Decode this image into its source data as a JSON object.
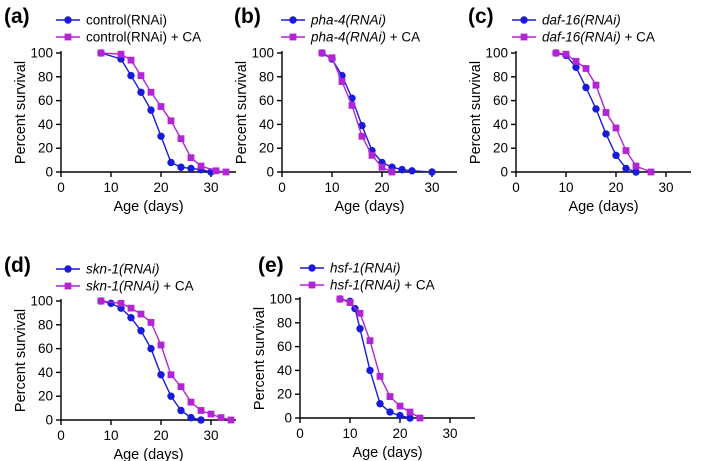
{
  "colors": {
    "control": "#1a1adb",
    "treated": "#b224d6"
  },
  "chart_data": [
    {
      "type": "line",
      "panel": "(a)",
      "xlabel": "Age (days)",
      "ylabel": "Percent survival",
      "xlim": [
        0,
        35
      ],
      "ylim": [
        0,
        100
      ],
      "xticks": [
        0,
        10,
        20,
        30
      ],
      "yticks": [
        0,
        20,
        40,
        60,
        80,
        100
      ],
      "series": [
        {
          "name": "control(RNAi)",
          "name_italic": "",
          "name_suffix": "",
          "marker": "circle",
          "x": [
            8,
            12,
            14,
            16,
            18,
            20,
            22,
            24,
            26,
            28,
            30
          ],
          "y": [
            100,
            95,
            81,
            67,
            52,
            30,
            8,
            4,
            3,
            2,
            0
          ]
        },
        {
          "name": "control(RNAi) + CA",
          "name_italic": "",
          "name_suffix": "",
          "marker": "square",
          "x": [
            8,
            12,
            14,
            16,
            18,
            20,
            22,
            24,
            26,
            28,
            31,
            33
          ],
          "y": [
            100,
            99,
            94,
            81,
            67,
            55,
            43,
            28,
            12,
            5,
            1,
            0
          ]
        }
      ]
    },
    {
      "type": "line",
      "panel": "(b)",
      "xlabel": "Age (days)",
      "ylabel": "Percent survival",
      "xlim": [
        0,
        35
      ],
      "ylim": [
        0,
        100
      ],
      "xticks": [
        0,
        10,
        20,
        30
      ],
      "yticks": [
        0,
        20,
        40,
        60,
        80,
        100
      ],
      "series": [
        {
          "name": "pha-4(RNAi)",
          "name_italic": "pha-4(RNAi)",
          "name_suffix": "",
          "marker": "circle",
          "x": [
            8,
            10,
            12,
            14,
            16,
            18,
            20,
            22,
            24,
            26,
            30
          ],
          "y": [
            100,
            95,
            81,
            62,
            39,
            18,
            8,
            4,
            2,
            1,
            0
          ]
        },
        {
          "name": "pha-4(RNAi) + CA",
          "name_italic": "pha-4(RNAi)",
          "name_suffix": " + CA",
          "marker": "square",
          "x": [
            8,
            10,
            12,
            14,
            16,
            18,
            20,
            22
          ],
          "y": [
            100,
            96,
            76,
            56,
            30,
            14,
            4,
            0
          ]
        }
      ]
    },
    {
      "type": "line",
      "panel": "(c)",
      "xlabel": "Age (days)",
      "ylabel": "Percent survival",
      "xlim": [
        0,
        35
      ],
      "ylim": [
        0,
        100
      ],
      "xticks": [
        0,
        10,
        20,
        30
      ],
      "yticks": [
        0,
        20,
        40,
        60,
        80,
        100
      ],
      "series": [
        {
          "name": "daf-16(RNAi)",
          "name_italic": "daf-16(RNAi)",
          "name_suffix": "",
          "marker": "circle",
          "x": [
            8,
            10,
            12,
            14,
            16,
            18,
            20,
            22,
            24
          ],
          "y": [
            100,
            98,
            88,
            71,
            53,
            32,
            14,
            3,
            0
          ]
        },
        {
          "name": "daf-16(RNAi) + CA",
          "name_italic": "daf-16(RNAi)",
          "name_suffix": " + CA",
          "marker": "square",
          "x": [
            8,
            10,
            12,
            14,
            16,
            18,
            20,
            22,
            24,
            27
          ],
          "y": [
            100,
            99,
            93,
            87,
            73,
            50,
            37,
            18,
            5,
            0
          ]
        }
      ]
    },
    {
      "type": "line",
      "panel": "(d)",
      "xlabel": "Age (days)",
      "ylabel": "Percent survival",
      "xlim": [
        0,
        35
      ],
      "ylim": [
        0,
        100
      ],
      "xticks": [
        0,
        10,
        20,
        30
      ],
      "yticks": [
        0,
        20,
        40,
        60,
        80,
        100
      ],
      "series": [
        {
          "name": "skn-1(RNAi)",
          "name_italic": "skn-1(RNAi)",
          "name_suffix": "",
          "marker": "circle",
          "x": [
            8,
            10,
            12,
            14,
            16,
            18,
            20,
            22,
            24,
            26,
            28
          ],
          "y": [
            100,
            98,
            94,
            86,
            75,
            60,
            38,
            20,
            8,
            2,
            0
          ]
        },
        {
          "name": "skn-1(RNAi) + CA",
          "name_italic": "skn-1(RNAi)",
          "name_suffix": " + CA",
          "marker": "square",
          "x": [
            8,
            12,
            14,
            16,
            18,
            20,
            22,
            24,
            26,
            28,
            30,
            32,
            34
          ],
          "y": [
            100,
            98,
            94,
            89,
            82,
            63,
            38,
            28,
            15,
            8,
            5,
            2,
            0
          ]
        }
      ]
    },
    {
      "type": "line",
      "panel": "(e)",
      "xlabel": "Age (days)",
      "ylabel": "Percent survival",
      "xlim": [
        0,
        35
      ],
      "ylim": [
        0,
        100
      ],
      "xticks": [
        0,
        10,
        20,
        30
      ],
      "yticks": [
        0,
        20,
        40,
        60,
        80,
        100
      ],
      "series": [
        {
          "name": "hsf-1(RNAi)",
          "name_italic": "hsf-1(RNAi)",
          "name_suffix": "",
          "marker": "circle",
          "x": [
            8,
            10,
            11,
            12,
            14,
            16,
            18,
            20,
            22
          ],
          "y": [
            100,
            98,
            92,
            75,
            40,
            12,
            5,
            2,
            0
          ]
        },
        {
          "name": "hsf-1(RNAi) + CA",
          "name_italic": "hsf-1(RNAi)",
          "name_suffix": " + CA",
          "marker": "square",
          "x": [
            8,
            10,
            12,
            14,
            16,
            18,
            20,
            22,
            24
          ],
          "y": [
            100,
            97,
            88,
            65,
            35,
            18,
            10,
            5,
            0
          ]
        }
      ]
    }
  ]
}
